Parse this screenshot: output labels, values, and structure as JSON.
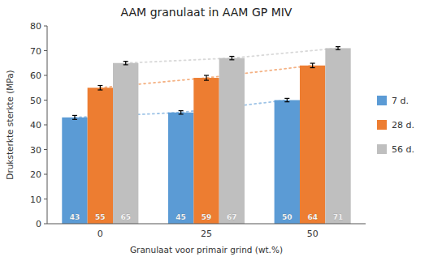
{
  "chart_data": {
    "type": "bar",
    "title": "AAM granulaat in AAM GP MIV",
    "x_label": "Granulaat voor primair grind (wt.%)",
    "y_label": "Druksterkte sterkte (MPa)",
    "categories": [
      "0",
      "25",
      "50"
    ],
    "series": [
      {
        "name": "7 d.",
        "color": "#5B9BD5",
        "values": [
          43,
          45,
          50
        ],
        "errors": [
          0.8,
          0.7,
          0.7
        ]
      },
      {
        "name": "28 d.",
        "color": "#ED7D31",
        "values": [
          55,
          59,
          64
        ],
        "errors": [
          0.9,
          1.0,
          0.9
        ]
      },
      {
        "name": "56 d.",
        "color": "#BFBFBF",
        "values": [
          65,
          67,
          71
        ],
        "errors": [
          0.7,
          0.7,
          0.6
        ]
      }
    ],
    "ylim": [
      0,
      80
    ],
    "yticks": [
      0,
      10,
      20,
      30,
      40,
      50,
      60,
      70,
      80
    ],
    "grid": false,
    "legend": "right",
    "data_labels": true
  }
}
